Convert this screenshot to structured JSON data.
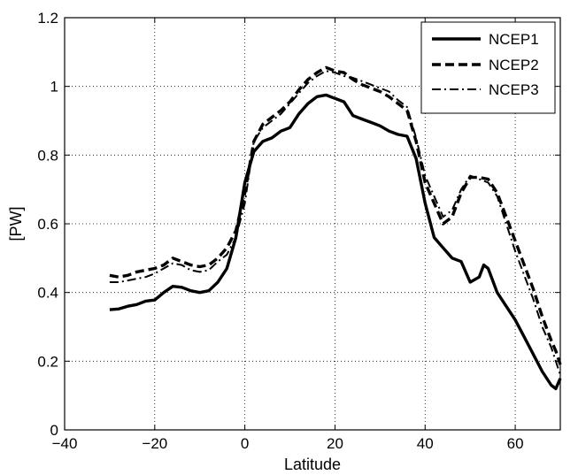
{
  "chart_data": {
    "type": "line",
    "title": "",
    "xlabel": "Latitude",
    "ylabel": "[PW]",
    "xlim": [
      -40,
      70
    ],
    "ylim": [
      0,
      1.2
    ],
    "xticks": [
      -40,
      -20,
      0,
      20,
      40,
      60
    ],
    "xtick_labels": [
      "−40",
      "−20",
      "0",
      "20",
      "40",
      "60"
    ],
    "yticks": [
      0,
      0.2,
      0.4,
      0.6,
      0.8,
      1,
      1.2
    ],
    "ytick_labels": [
      "0",
      "0.2",
      "0.4",
      "0.6",
      "0.8",
      "1",
      "1.2"
    ],
    "grid": true,
    "legend_position": "top-right",
    "series": [
      {
        "name": "NCEP1",
        "style": "solid",
        "color": "#000000",
        "x": [
          -30,
          -28,
          -26,
          -24,
          -22,
          -20,
          -18,
          -16,
          -14,
          -12,
          -10,
          -8,
          -6,
          -4,
          -2,
          0,
          2,
          4,
          6,
          8,
          10,
          12,
          14,
          16,
          18,
          20,
          22,
          24,
          26,
          28,
          30,
          32,
          34,
          36,
          38,
          40,
          42,
          44,
          46,
          48,
          50,
          52,
          53,
          54,
          56,
          58,
          60,
          62,
          64,
          66,
          68,
          69,
          70
        ],
        "y": [
          0.35,
          0.352,
          0.36,
          0.365,
          0.375,
          0.378,
          0.4,
          0.418,
          0.415,
          0.405,
          0.4,
          0.405,
          0.43,
          0.47,
          0.56,
          0.72,
          0.81,
          0.84,
          0.85,
          0.87,
          0.88,
          0.92,
          0.95,
          0.97,
          0.975,
          0.965,
          0.955,
          0.915,
          0.905,
          0.895,
          0.885,
          0.87,
          0.86,
          0.855,
          0.79,
          0.66,
          0.56,
          0.53,
          0.5,
          0.49,
          0.43,
          0.445,
          0.48,
          0.47,
          0.4,
          0.36,
          0.32,
          0.27,
          0.22,
          0.17,
          0.13,
          0.12,
          0.15
        ]
      },
      {
        "name": "NCEP2",
        "style": "dashed",
        "color": "#000000",
        "x": [
          -30,
          -28,
          -26,
          -24,
          -22,
          -20,
          -18,
          -16,
          -14,
          -12,
          -10,
          -8,
          -6,
          -4,
          -2,
          0,
          2,
          4,
          6,
          8,
          10,
          12,
          14,
          16,
          18,
          20,
          22,
          24,
          26,
          28,
          30,
          32,
          34,
          36,
          38,
          40,
          42,
          44,
          46,
          48,
          50,
          52,
          54,
          56,
          58,
          60,
          62,
          64,
          66,
          68,
          69,
          70
        ],
        "y": [
          0.45,
          0.445,
          0.45,
          0.46,
          0.465,
          0.47,
          0.48,
          0.5,
          0.49,
          0.48,
          0.475,
          0.48,
          0.5,
          0.53,
          0.58,
          0.69,
          0.84,
          0.89,
          0.91,
          0.93,
          0.955,
          0.99,
          1.02,
          1.04,
          1.055,
          1.045,
          1.04,
          1.02,
          1.005,
          0.995,
          0.985,
          0.97,
          0.95,
          0.93,
          0.84,
          0.72,
          0.66,
          0.6,
          0.62,
          0.69,
          0.735,
          0.735,
          0.73,
          0.69,
          0.62,
          0.55,
          0.48,
          0.41,
          0.33,
          0.26,
          0.23,
          0.19
        ]
      },
      {
        "name": "NCEP3",
        "style": "dashdot",
        "color": "#000000",
        "x": [
          -30,
          -28,
          -26,
          -24,
          -22,
          -20,
          -18,
          -16,
          -14,
          -12,
          -10,
          -8,
          -6,
          -4,
          -2,
          0,
          2,
          4,
          6,
          8,
          10,
          12,
          14,
          16,
          18,
          20,
          22,
          24,
          26,
          28,
          30,
          32,
          34,
          36,
          38,
          40,
          42,
          44,
          46,
          48,
          50,
          52,
          54,
          56,
          58,
          60,
          62,
          64,
          66,
          68,
          69,
          70
        ],
        "y": [
          0.43,
          0.43,
          0.435,
          0.44,
          0.445,
          0.455,
          0.47,
          0.485,
          0.48,
          0.465,
          0.46,
          0.465,
          0.49,
          0.51,
          0.56,
          0.66,
          0.84,
          0.88,
          0.9,
          0.92,
          0.95,
          0.98,
          1.01,
          1.03,
          1.045,
          1.04,
          1.03,
          1.025,
          1.015,
          1.005,
          0.995,
          0.985,
          0.96,
          0.94,
          0.85,
          0.74,
          0.68,
          0.62,
          0.64,
          0.7,
          0.74,
          0.73,
          0.72,
          0.68,
          0.6,
          0.52,
          0.45,
          0.38,
          0.3,
          0.24,
          0.2,
          0.16
        ]
      }
    ]
  }
}
